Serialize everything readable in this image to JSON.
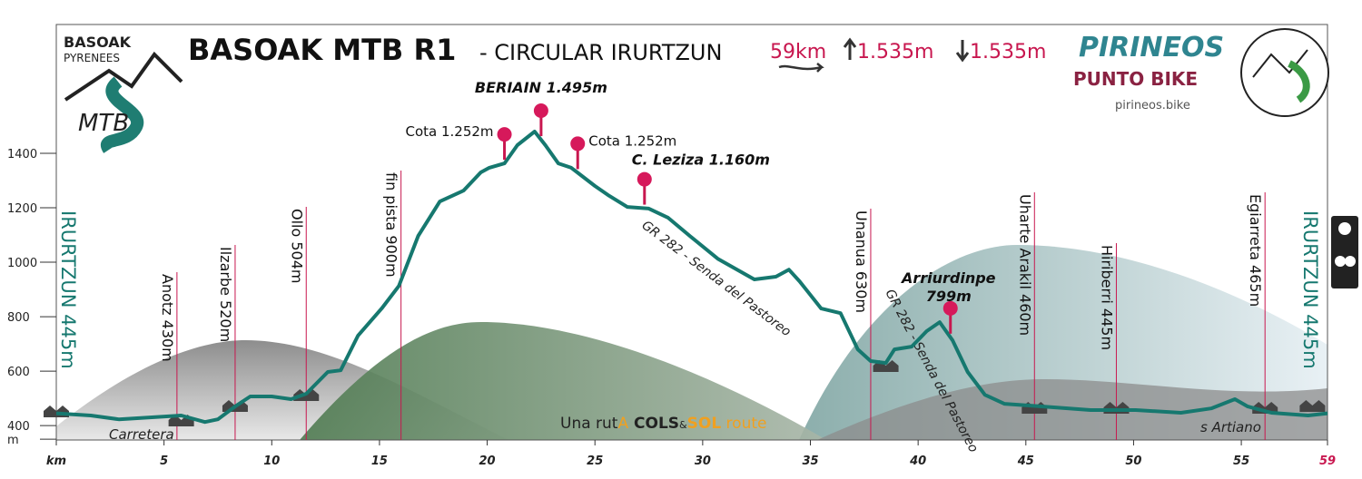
{
  "header": {
    "logo_top": "BASOAK",
    "logo_sub": "PYRENEES",
    "logo_mtb": "MTB",
    "title": "BASOAK MTB R1",
    "subtitle": "- CIRCULAR IRURTZUN",
    "distance": "59km",
    "ascent": "1.535m",
    "descent": "1.535m",
    "brand": "PIRINEOS",
    "brand_sub": "PUNTO BIKE",
    "website": "pirineos.bike"
  },
  "chart_data": {
    "type": "line",
    "color": "#16786f",
    "x": [
      0,
      1.6,
      2.9,
      5.8,
      6.9,
      7.5,
      8.3,
      9,
      10,
      10.9,
      11.6,
      12.6,
      13.2,
      14,
      15.1,
      15.9,
      16.8,
      17.8,
      18.9,
      19.7,
      20.1,
      20.8,
      21.4,
      22.2,
      22.7,
      23.3,
      23.9,
      25,
      25.6,
      26.5,
      27.5,
      28.4,
      29.4,
      30.7,
      32.4,
      33.4,
      34,
      34.5,
      35.5,
      36.4,
      37.2,
      37.8,
      38.5,
      38.9,
      39.7,
      40.4,
      41,
      41.6,
      42.3,
      43.1,
      44,
      45.8,
      48,
      50.1,
      52.2,
      53.6,
      54.7,
      55.3,
      56.4,
      58.1,
      59
    ],
    "values": [
      445,
      437,
      423,
      437,
      413,
      423,
      470,
      507,
      507,
      497,
      517,
      597,
      603,
      730,
      830,
      913,
      1097,
      1223,
      1263,
      1330,
      1347,
      1363,
      1430,
      1480,
      1430,
      1363,
      1347,
      1280,
      1247,
      1203,
      1197,
      1163,
      1097,
      1013,
      937,
      947,
      973,
      930,
      830,
      813,
      680,
      637,
      630,
      680,
      690,
      747,
      780,
      713,
      597,
      513,
      480,
      470,
      457,
      457,
      447,
      463,
      497,
      470,
      447,
      437,
      445
    ],
    "xlim": [
      0,
      59
    ],
    "ylim": [
      347,
      1880
    ],
    "xticks": [
      {
        "value": 0,
        "label": "km"
      },
      5,
      10,
      15,
      20,
      25,
      30,
      35,
      40,
      45,
      50,
      55,
      59
    ],
    "yticks": [
      {
        "value": 350,
        "label": "m"
      },
      400,
      600,
      800,
      1000,
      1200,
      1400
    ],
    "highlight_tick_color": "#c8174f",
    "pins": [
      {
        "label": [
          "Cota 1.252m"
        ],
        "km": 20.8
      },
      {
        "label": [
          "BERIAIN 1.495m"
        ],
        "km": 22.5
      },
      {
        "label": [
          "Cota 1.252m"
        ],
        "km": 24.2
      },
      {
        "label": [
          "C. Leziza 1.160m"
        ],
        "km": 27.3
      },
      {
        "label": [
          "Arriurdinpe",
          "799m"
        ],
        "km": 41.5
      }
    ],
    "places": [
      {
        "label": "Anotz 430m",
        "km": 5.6
      },
      {
        "label": "Ilzarbe 520m",
        "km": 8.3
      },
      {
        "label": "Ollo 504m",
        "km": 11.6
      },
      {
        "label": "fin pista 900m",
        "km": 16
      },
      {
        "label": "Unanua 630m",
        "km": 37.8
      },
      {
        "label": "Uharte Arakil 460m",
        "km": 45.4
      },
      {
        "label": "Hiriberri 445m",
        "km": 49.2
      },
      {
        "label": "Egiarreta 465m",
        "km": 56.1
      }
    ],
    "endpoint_label": "IRURTZUN 445m",
    "route_labels": [
      "GR 282 - Senda del Pastoreo",
      "GR 282 - Senda del Pastoreo",
      "Carretera",
      "s Artiano"
    ],
    "promo": [
      "Una rut",
      "A",
      " COLS",
      "&",
      "SOL",
      " route"
    ]
  }
}
